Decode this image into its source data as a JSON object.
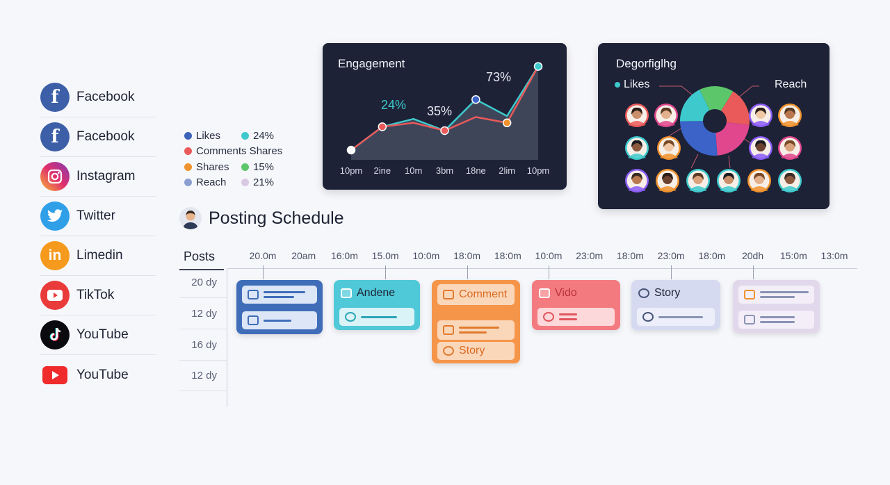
{
  "networks": [
    {
      "label": "Facebook",
      "icon": "facebook-icon",
      "color": "#3c5fa8",
      "glyph": "f"
    },
    {
      "label": "Facebook",
      "icon": "facebook-icon",
      "color": "#3c5fa8",
      "glyph": "f"
    },
    {
      "label": "Instagram",
      "icon": "instagram-icon",
      "color": "#d6336c",
      "glyph": "◎"
    },
    {
      "label": "Twitter",
      "icon": "twitter-icon",
      "color": "#2f9fe8",
      "glyph": "🐦"
    },
    {
      "label": "Limedin",
      "icon": "linkedin-icon",
      "color": "#f59a1c",
      "glyph": "in"
    },
    {
      "label": "TikTok",
      "icon": "youtube-icon",
      "color": "#ea3b3b",
      "glyph": "▶"
    },
    {
      "label": "YouTube",
      "icon": "tiktok-icon",
      "color": "#0b0b0f",
      "glyph": "♪"
    },
    {
      "label": "YouTube",
      "icon": "youtube-icon",
      "color": "#ef2b2b",
      "glyph": "▶"
    }
  ],
  "legend": [
    {
      "left": "Likes",
      "left_color": "#3b63b8",
      "right": "24%",
      "right_color": "#3ec9cc"
    },
    {
      "left": "Comments Shares",
      "left_color": "#ea5a5a",
      "right": "",
      "right_color": ""
    },
    {
      "left": "Shares",
      "left_color": "#f0922d",
      "right": "15%",
      "right_color": "#5cc66a"
    },
    {
      "left": "Reach",
      "left_color": "#8a9ed0",
      "right": "21%",
      "right_color": "#d9c8e3"
    }
  ],
  "engagement": {
    "title": "Engagement",
    "annotations": [
      "24%",
      "35%",
      "73%"
    ],
    "chart_data": {
      "type": "line",
      "x": [
        "10pm",
        "2ine",
        "10m",
        "3bm",
        "18ne",
        "2lim",
        "10pm"
      ],
      "series": [
        {
          "values": [
            10,
            34,
            42,
            30,
            62,
            45,
            96
          ],
          "color": "#3ec9cc"
        },
        {
          "values": [
            10,
            34,
            38,
            30,
            44,
            38,
            96
          ],
          "color": "#ea5a5a"
        }
      ],
      "ylim": [
        0,
        100
      ]
    }
  },
  "demographics": {
    "title": "Degorfiglhg",
    "legend_left": "Likes",
    "legend_right": "Reach",
    "chart_data": {
      "type": "pie",
      "values": [
        16,
        18,
        22,
        26,
        18
      ],
      "colors": [
        "#5cc66a",
        "#ea5a5a",
        "#e0478d",
        "#3b63c8",
        "#3ec9cc"
      ]
    }
  },
  "schedule": {
    "title": "Posting Schedule",
    "posts_label": "Posts",
    "rows": [
      "20 dy",
      "12 dy",
      "16 dy",
      "12 dy"
    ],
    "times": [
      "20.0m",
      "20am",
      "16:0m",
      "15.0m",
      "10:0m",
      "18:0m",
      "18:0m",
      "10:0m",
      "23:0m",
      "18:0m",
      "23:0m",
      "18:0m",
      "20dh",
      "15:0m",
      "13:0m"
    ],
    "cards": [
      {
        "name": "post-card-image",
        "chips": [
          "",
          ""
        ],
        "color": "#3f6db8"
      },
      {
        "name": "post-card-andene",
        "chips": [
          "Andene",
          ""
        ],
        "color": "#4fc8d8"
      },
      {
        "name": "post-card-comment",
        "chips": [
          "Comment",
          "",
          "Story"
        ],
        "color": "#f5954a"
      },
      {
        "name": "post-card-video",
        "chips": [
          "Vido",
          ""
        ],
        "color": "#f37b80"
      },
      {
        "name": "post-card-story",
        "chips": [
          "Story",
          ""
        ],
        "color": "#d5daf0"
      },
      {
        "name": "post-card-draft",
        "chips": [
          "",
          ""
        ],
        "color": "#e2d8ec"
      }
    ]
  }
}
